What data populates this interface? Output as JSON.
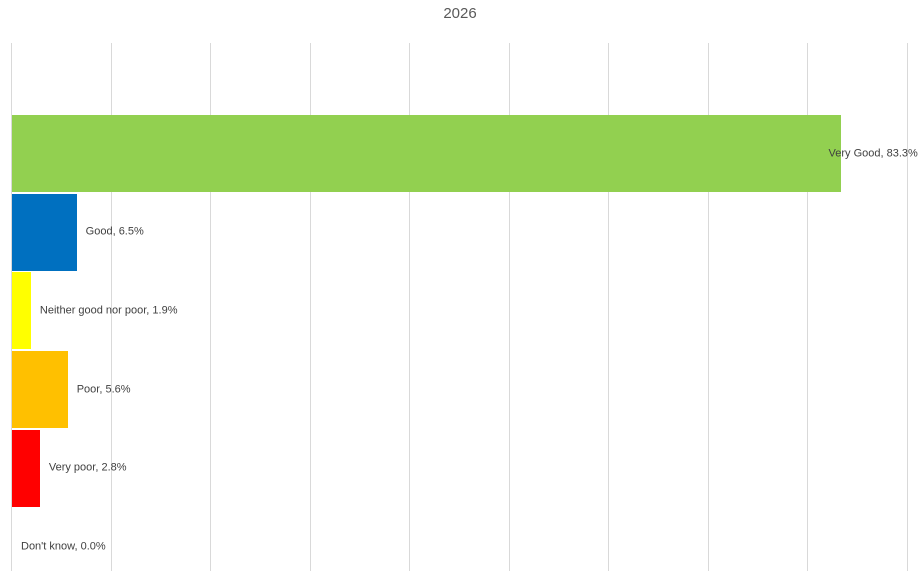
{
  "chart_data": {
    "type": "bar",
    "orientation": "horizontal",
    "title": "2026",
    "categories": [
      "Very Good",
      "Good",
      "Neither good nor poor",
      "Poor",
      "Very poor",
      "Don't know"
    ],
    "values": [
      83.3,
      6.5,
      1.9,
      5.6,
      2.8,
      0.0
    ],
    "data_labels": [
      "Very Good, 83.3%",
      "Good, 6.5%",
      "Neither good nor poor, 1.9%",
      "Poor, 5.6%",
      "Very poor, 2.8%",
      "Don't know, 0.0%"
    ],
    "bar_colors": [
      "#92D050",
      "#0070C0",
      "#FFFF00",
      "#FFC000",
      "#FF0000",
      "#FFFFFF"
    ],
    "xlim": [
      0,
      90
    ],
    "gridline_interval": 10,
    "grid": true,
    "legend": false,
    "axis_tick_labels_visible": false,
    "colors": {
      "gridline": "#D9D9D9",
      "title_text": "#595959",
      "label_text": "#404040",
      "background": "#FFFFFF"
    }
  }
}
